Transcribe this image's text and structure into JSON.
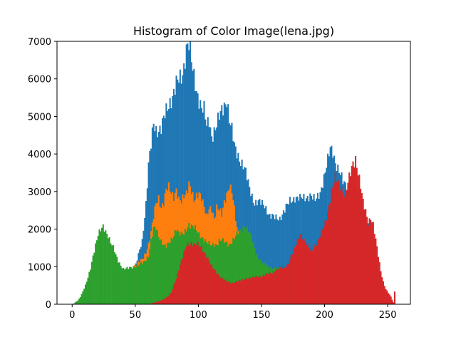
{
  "chart_data": {
    "type": "bar",
    "title": "Histogram of Color Image(lena.jpg)",
    "xlabel": "",
    "ylabel": "",
    "xlim": [
      -12,
      268
    ],
    "ylim": [
      0,
      7000
    ],
    "x_ticks": [
      0,
      50,
      100,
      150,
      200,
      250
    ],
    "y_ticks": [
      0,
      1000,
      2000,
      3000,
      4000,
      5000,
      6000,
      7000
    ],
    "x_tick_labels": [
      "0",
      "50",
      "100",
      "150",
      "200",
      "250"
    ],
    "y_tick_labels": [
      "0",
      "1000",
      "2000",
      "3000",
      "4000",
      "5000",
      "6000",
      "7000"
    ],
    "grid": false,
    "legend": "none",
    "bin_width": 1,
    "series": [
      {
        "color": "#1f77b4",
        "x": [
          0,
          5,
          10,
          15,
          20,
          25,
          30,
          35,
          40,
          45,
          48,
          50,
          55,
          58,
          60,
          62,
          64,
          66,
          70,
          74,
          78,
          82,
          86,
          88,
          90,
          92,
          94,
          96,
          98,
          100,
          102,
          104,
          106,
          108,
          110,
          114,
          118,
          122,
          124,
          126,
          128,
          132,
          136,
          140,
          144,
          148,
          152,
          156,
          160,
          164,
          168,
          172,
          176,
          180,
          184,
          188,
          192,
          196,
          200,
          202,
          204,
          206,
          208,
          210,
          214,
          218,
          222,
          226,
          230,
          234,
          238,
          242,
          246,
          250,
          252,
          254,
          255
        ],
        "values": [
          0,
          0,
          0,
          0,
          0,
          0,
          0,
          0,
          0,
          0,
          1000,
          1050,
          1700,
          2700,
          3700,
          4200,
          4800,
          4650,
          4700,
          5100,
          5500,
          5850,
          6000,
          6350,
          6900,
          6950,
          6400,
          6000,
          5700,
          5500,
          5250,
          5150,
          4700,
          4900,
          4500,
          4750,
          5150,
          5500,
          4900,
          4600,
          4200,
          3900,
          3600,
          3100,
          2700,
          2700,
          2650,
          2350,
          2300,
          2300,
          2500,
          2750,
          2850,
          2800,
          2850,
          2900,
          2750,
          3000,
          3500,
          3800,
          4150,
          4100,
          3800,
          3600,
          3250,
          3150,
          3100,
          2900,
          2300,
          2100,
          1700,
          900,
          400,
          100,
          0,
          0,
          0
        ]
      },
      {
        "color": "#ff7f0e",
        "x": [
          0,
          5,
          10,
          15,
          20,
          25,
          30,
          35,
          40,
          45,
          48,
          50,
          52,
          54,
          56,
          58,
          60,
          62,
          64,
          66,
          68,
          70,
          72,
          74,
          76,
          78,
          80,
          82,
          84,
          86,
          88,
          90,
          92,
          94,
          96,
          98,
          100,
          102,
          104,
          106,
          108,
          110,
          112,
          114,
          116,
          118,
          120,
          122,
          124,
          126,
          128,
          130,
          135,
          140,
          150,
          155,
          160,
          165,
          170,
          172,
          174,
          176,
          178,
          180,
          190,
          200,
          210,
          220,
          230,
          240,
          250,
          255
        ],
        "values": [
          0,
          0,
          0,
          0,
          0,
          0,
          0,
          0,
          0,
          0,
          1000,
          1050,
          1100,
          1150,
          1250,
          1400,
          1600,
          1900,
          2300,
          2700,
          2850,
          2600,
          2700,
          3000,
          3100,
          3000,
          2900,
          3050,
          2750,
          2700,
          2900,
          3000,
          3250,
          3000,
          2700,
          2850,
          3000,
          2900,
          2600,
          2300,
          2500,
          2550,
          2300,
          2600,
          2500,
          2350,
          2700,
          2950,
          3200,
          3000,
          2500,
          2000,
          1600,
          1300,
          900,
          850,
          850,
          850,
          950,
          1000,
          900,
          0,
          0,
          0,
          0,
          0,
          0,
          0,
          0,
          0,
          0,
          0
        ]
      },
      {
        "color": "#2ca02c",
        "x": [
          0,
          2,
          4,
          6,
          8,
          10,
          12,
          14,
          16,
          18,
          20,
          22,
          24,
          26,
          28,
          30,
          32,
          34,
          36,
          38,
          40,
          44,
          48,
          52,
          56,
          60,
          62,
          64,
          66,
          68,
          70,
          72,
          74,
          76,
          78,
          80,
          82,
          84,
          86,
          88,
          90,
          92,
          94,
          96,
          98,
          100,
          102,
          104,
          106,
          108,
          110,
          112,
          114,
          116,
          118,
          120,
          124,
          128,
          132,
          134,
          136,
          138,
          140,
          142,
          144,
          146,
          148,
          150,
          155,
          160,
          165,
          170,
          175,
          176,
          180,
          200,
          220,
          240,
          255
        ],
        "values": [
          0,
          50,
          100,
          200,
          350,
          500,
          700,
          950,
          1300,
          1600,
          1850,
          1950,
          2050,
          1950,
          1850,
          1650,
          1500,
          1300,
          1150,
          1050,
          950,
          950,
          1000,
          1050,
          1100,
          1300,
          1700,
          2000,
          2000,
          1800,
          1700,
          1600,
          1550,
          1600,
          1700,
          1850,
          2050,
          1900,
          1850,
          1850,
          2000,
          2150,
          2100,
          2050,
          1950,
          1850,
          1800,
          1750,
          1650,
          1600,
          1550,
          1600,
          1600,
          1700,
          1700,
          1650,
          1600,
          1750,
          1950,
          2000,
          2100,
          2000,
          1900,
          1700,
          1500,
          1300,
          1200,
          1100,
          1000,
          950,
          950,
          900,
          950,
          0,
          0,
          0,
          0,
          0,
          0
        ]
      },
      {
        "color": "#d62728",
        "x": [
          0,
          60,
          65,
          70,
          75,
          78,
          80,
          82,
          84,
          86,
          88,
          90,
          92,
          94,
          96,
          98,
          100,
          102,
          104,
          106,
          108,
          110,
          114,
          118,
          122,
          126,
          130,
          134,
          138,
          142,
          146,
          150,
          154,
          158,
          160,
          164,
          168,
          170,
          172,
          174,
          176,
          178,
          180,
          182,
          184,
          186,
          188,
          190,
          192,
          194,
          196,
          198,
          200,
          202,
          204,
          206,
          208,
          210,
          212,
          214,
          216,
          218,
          220,
          222,
          224,
          226,
          228,
          230,
          232,
          234,
          236,
          238,
          240,
          242,
          244,
          246,
          248,
          250,
          252,
          254,
          255
        ],
        "values": [
          0,
          0,
          50,
          100,
          200,
          300,
          500,
          700,
          950,
          1150,
          1350,
          1550,
          1600,
          1650,
          1600,
          1600,
          1550,
          1500,
          1400,
          1300,
          1150,
          1000,
          850,
          700,
          600,
          580,
          600,
          650,
          700,
          700,
          750,
          750,
          800,
          850,
          900,
          950,
          1000,
          1050,
          1200,
          1350,
          1500,
          1700,
          1900,
          1800,
          1650,
          1550,
          1450,
          1500,
          1600,
          1650,
          1800,
          2000,
          2200,
          2500,
          2800,
          3100,
          3350,
          3300,
          3200,
          3000,
          2900,
          3200,
          3500,
          3800,
          3900,
          3500,
          3100,
          2700,
          2500,
          2200,
          2300,
          2100,
          1700,
          1300,
          900,
          600,
          400,
          300,
          200,
          50,
          350
        ]
      }
    ]
  }
}
